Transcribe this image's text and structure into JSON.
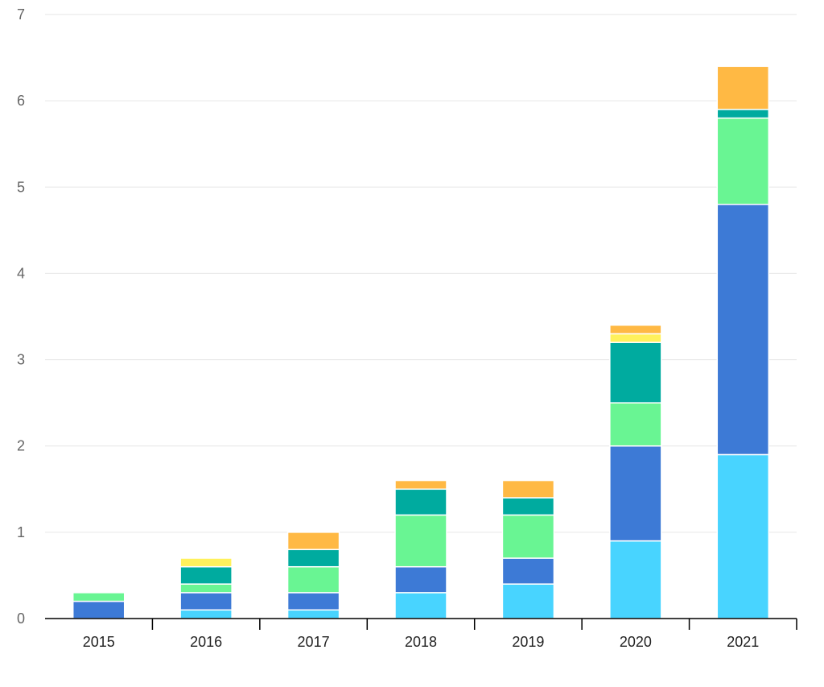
{
  "chart_data": {
    "type": "bar",
    "stacked": true,
    "title": "",
    "xlabel": "",
    "ylabel": "",
    "categories": [
      "2015",
      "2016",
      "2017",
      "2018",
      "2019",
      "2020",
      "2021"
    ],
    "ylim": [
      0,
      7
    ],
    "yticks": [
      0,
      1,
      2,
      3,
      4,
      5,
      6,
      7
    ],
    "grid": true,
    "legend": "none",
    "series": [
      {
        "color": "#48d4ff",
        "values": [
          0.0,
          0.1,
          0.1,
          0.3,
          0.4,
          0.9,
          1.9
        ]
      },
      {
        "color": "#3d7ad6",
        "values": [
          0.2,
          0.2,
          0.2,
          0.3,
          0.3,
          1.1,
          2.9
        ]
      },
      {
        "color": "#69f593",
        "values": [
          0.1,
          0.1,
          0.3,
          0.6,
          0.5,
          0.5,
          1.0
        ]
      },
      {
        "color": "#00ab9f",
        "values": [
          0.0,
          0.2,
          0.2,
          0.3,
          0.2,
          0.7,
          0.1
        ]
      },
      {
        "color": "#fff15c",
        "values": [
          0.0,
          0.1,
          0.0,
          0.0,
          0.0,
          0.1,
          0.0
        ]
      },
      {
        "color": "#ffb944",
        "values": [
          0.0,
          0.0,
          0.2,
          0.1,
          0.2,
          0.1,
          0.5
        ]
      }
    ]
  }
}
